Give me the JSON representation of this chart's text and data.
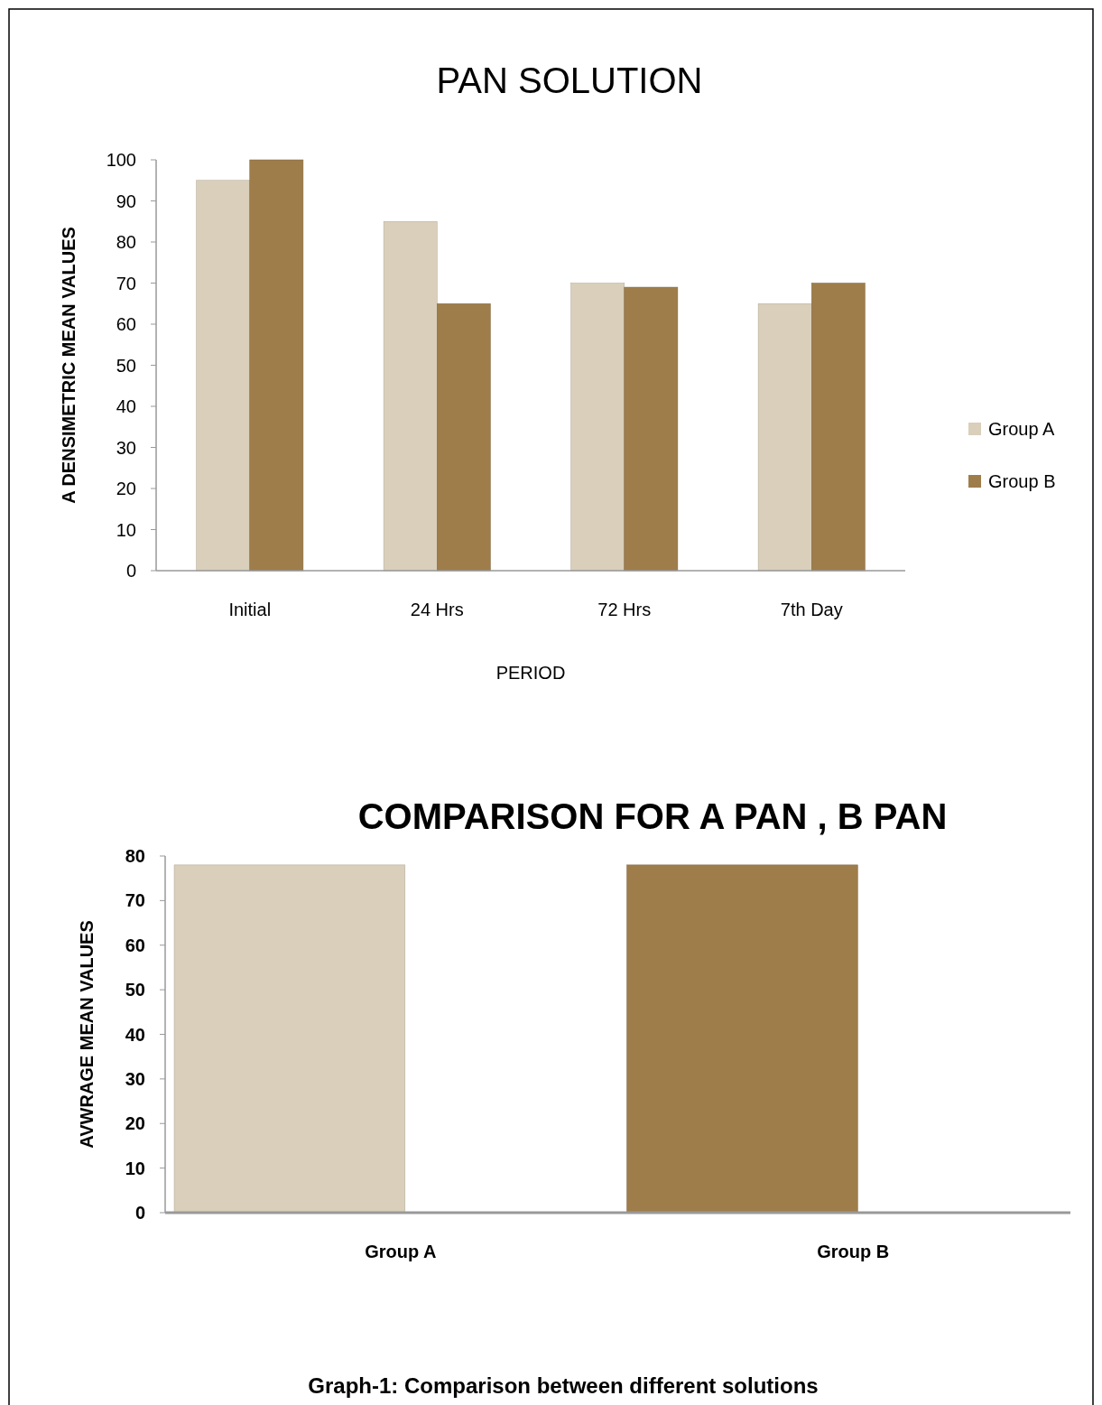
{
  "chart_data": [
    {
      "type": "bar",
      "title": "PAN SOLUTION",
      "xlabel": "PERIOD",
      "ylabel": "A DENSIMETRIC  MEAN VALUES",
      "categories": [
        "Initial",
        "24 Hrs",
        "72 Hrs",
        "7th Day"
      ],
      "series": [
        {
          "name": "Group A",
          "color": "#d9cfba",
          "values": [
            95,
            85,
            70,
            65
          ]
        },
        {
          "name": "Group B",
          "color": "#9e7d4b",
          "values": [
            100,
            65,
            69,
            70
          ]
        }
      ],
      "ylim": [
        0,
        100
      ],
      "yticks": [
        0,
        10,
        20,
        30,
        40,
        50,
        60,
        70,
        80,
        90,
        100
      ],
      "legend": "right"
    },
    {
      "type": "bar",
      "title": "COMPARISON FOR A PAN ,  B PAN",
      "ylabel": "AVWRAGE MEAN VALUES",
      "categories": [
        "Group A",
        "Group B"
      ],
      "values": [
        78,
        78
      ],
      "colors": [
        "#d9cfba",
        "#9e7d4b"
      ],
      "ylim": [
        0,
        80
      ],
      "yticks": [
        0,
        10,
        20,
        30,
        40,
        50,
        60,
        70,
        80
      ],
      "annotations": [
        "Graph-1: Comparison between different solutions"
      ]
    }
  ]
}
